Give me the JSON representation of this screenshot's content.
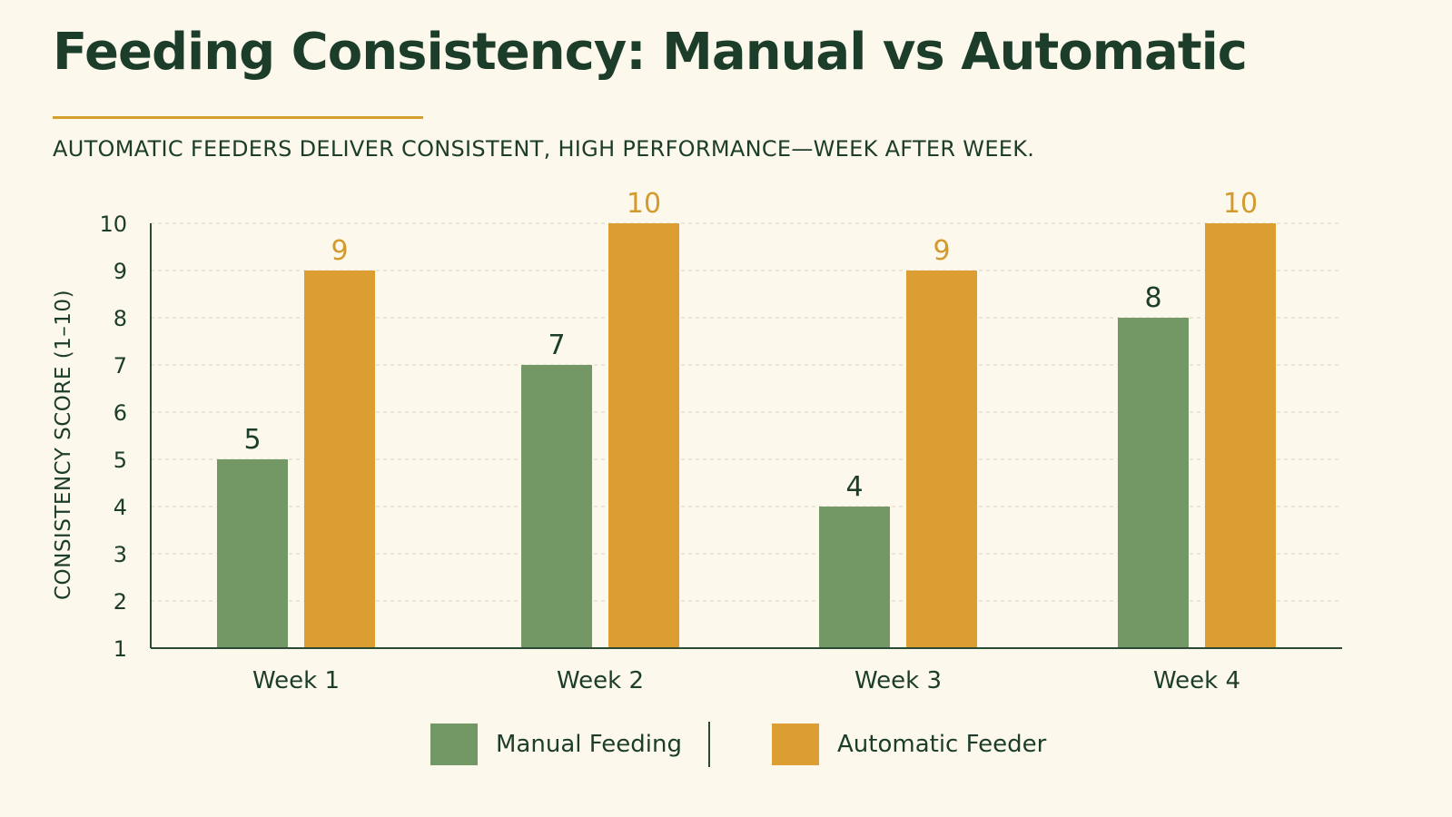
{
  "colors": {
    "background": "#fcf8ec",
    "text": "#1c3d2a",
    "accent": "#d4a12a",
    "manual": "#739765",
    "automatic": "#dc9e33",
    "grid": "#d9d6c8"
  },
  "chart_data": {
    "type": "bar",
    "title": "Feeding Consistency: Manual vs Automatic",
    "subtitle": "AUTOMATIC FEEDERS DELIVER CONSISTENT, HIGH PERFORMANCE—WEEK AFTER WEEK.",
    "xlabel": "",
    "ylabel": "CONSISTENCY SCORE (1–10)",
    "ylim": [
      1,
      10
    ],
    "yticks": [
      "1",
      "2",
      "3",
      "4",
      "5",
      "6",
      "7",
      "8",
      "9",
      "10"
    ],
    "categories": [
      "Week 1",
      "Week 2",
      "Week 3",
      "Week 4"
    ],
    "series": [
      {
        "name": "Manual Feeding",
        "values": [
          5,
          7,
          4,
          8
        ],
        "color": "#739765",
        "label_color": "#1c3d2a"
      },
      {
        "name": "Automatic Feeder",
        "values": [
          9,
          10,
          9,
          10
        ],
        "color": "#dc9e33",
        "label_color": "#d39a2d"
      }
    ],
    "grid": true,
    "data_labels": true,
    "legend_position": "bottom-center"
  }
}
